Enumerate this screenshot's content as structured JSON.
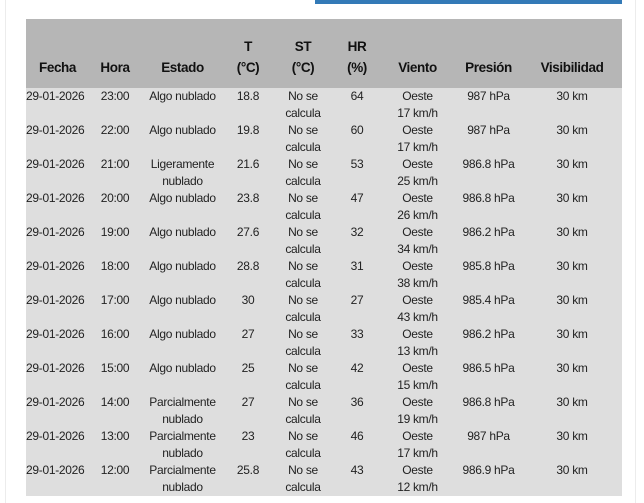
{
  "colors": {
    "accent_bar": "#337ab7",
    "header_bg": "#b6b6b6",
    "row_bg": "#dedede"
  },
  "table": {
    "headers": [
      {
        "line1": "",
        "line2": "Fecha"
      },
      {
        "line1": "",
        "line2": "Hora"
      },
      {
        "line1": "",
        "line2": "Estado"
      },
      {
        "line1": "T",
        "line2": "(°C)"
      },
      {
        "line1": "ST",
        "line2": "(°C)"
      },
      {
        "line1": "HR",
        "line2": "(%)"
      },
      {
        "line1": "",
        "line2": "Viento"
      },
      {
        "line1": "",
        "line2": "Presión"
      },
      {
        "line1": "",
        "line2": "Visibilidad"
      }
    ],
    "rows": [
      {
        "fecha": "29-01-2026",
        "hora": "23:00",
        "estado": [
          "Algo nublado"
        ],
        "t": "18.8",
        "st": [
          "No se",
          "calcula"
        ],
        "hr": "64",
        "viento": [
          "Oeste",
          "17 km/h"
        ],
        "presion": "987 hPa",
        "visibilidad": "30 km"
      },
      {
        "fecha": "29-01-2026",
        "hora": "22:00",
        "estado": [
          "Algo nublado"
        ],
        "t": "19.8",
        "st": [
          "No se",
          "calcula"
        ],
        "hr": "60",
        "viento": [
          "Oeste",
          "17 km/h"
        ],
        "presion": "987 hPa",
        "visibilidad": "30 km"
      },
      {
        "fecha": "29-01-2026",
        "hora": "21:00",
        "estado": [
          "Ligeramente",
          "nublado"
        ],
        "t": "21.6",
        "st": [
          "No se",
          "calcula"
        ],
        "hr": "53",
        "viento": [
          "Oeste",
          "25 km/h"
        ],
        "presion": "986.8 hPa",
        "visibilidad": "30 km"
      },
      {
        "fecha": "29-01-2026",
        "hora": "20:00",
        "estado": [
          "Algo nublado"
        ],
        "t": "23.8",
        "st": [
          "No se",
          "calcula"
        ],
        "hr": "47",
        "viento": [
          "Oeste",
          "26 km/h"
        ],
        "presion": "986.8 hPa",
        "visibilidad": "30 km"
      },
      {
        "fecha": "29-01-2026",
        "hora": "19:00",
        "estado": [
          "Algo nublado"
        ],
        "t": "27.6",
        "st": [
          "No se",
          "calcula"
        ],
        "hr": "32",
        "viento": [
          "Oeste",
          "34 km/h"
        ],
        "presion": "986.2 hPa",
        "visibilidad": "30 km"
      },
      {
        "fecha": "29-01-2026",
        "hora": "18:00",
        "estado": [
          "Algo nublado"
        ],
        "t": "28.8",
        "st": [
          "No se",
          "calcula"
        ],
        "hr": "31",
        "viento": [
          "Oeste",
          "38 km/h"
        ],
        "presion": "985.8 hPa",
        "visibilidad": "30 km"
      },
      {
        "fecha": "29-01-2026",
        "hora": "17:00",
        "estado": [
          "Algo nublado"
        ],
        "t": "30",
        "st": [
          "No se",
          "calcula"
        ],
        "hr": "27",
        "viento": [
          "Oeste",
          "43 km/h"
        ],
        "presion": "985.4 hPa",
        "visibilidad": "30 km"
      },
      {
        "fecha": "29-01-2026",
        "hora": "16:00",
        "estado": [
          "Algo nublado"
        ],
        "t": "27",
        "st": [
          "No se",
          "calcula"
        ],
        "hr": "33",
        "viento": [
          "Oeste",
          "13 km/h"
        ],
        "presion": "986.2 hPa",
        "visibilidad": "30 km"
      },
      {
        "fecha": "29-01-2026",
        "hora": "15:00",
        "estado": [
          "Algo nublado"
        ],
        "t": "25",
        "st": [
          "No se",
          "calcula"
        ],
        "hr": "42",
        "viento": [
          "Oeste",
          "15 km/h"
        ],
        "presion": "986.5 hPa",
        "visibilidad": "30 km"
      },
      {
        "fecha": "29-01-2026",
        "hora": "14:00",
        "estado": [
          "Parcialmente",
          "nublado"
        ],
        "t": "27",
        "st": [
          "No se",
          "calcula"
        ],
        "hr": "36",
        "viento": [
          "Oeste",
          "19 km/h"
        ],
        "presion": "986.8 hPa",
        "visibilidad": "30 km"
      },
      {
        "fecha": "29-01-2026",
        "hora": "13:00",
        "estado": [
          "Parcialmente",
          "nublado"
        ],
        "t": "23",
        "st": [
          "No se",
          "calcula"
        ],
        "hr": "46",
        "viento": [
          "Oeste",
          "17 km/h"
        ],
        "presion": "987 hPa",
        "visibilidad": "30 km"
      },
      {
        "fecha": "29-01-2026",
        "hora": "12:00",
        "estado": [
          "Parcialmente",
          "nublado"
        ],
        "t": "25.8",
        "st": [
          "No se",
          "calcula"
        ],
        "hr": "43",
        "viento": [
          "Oeste",
          "12 km/h"
        ],
        "presion": "986.9 hPa",
        "visibilidad": "30 km"
      }
    ]
  }
}
